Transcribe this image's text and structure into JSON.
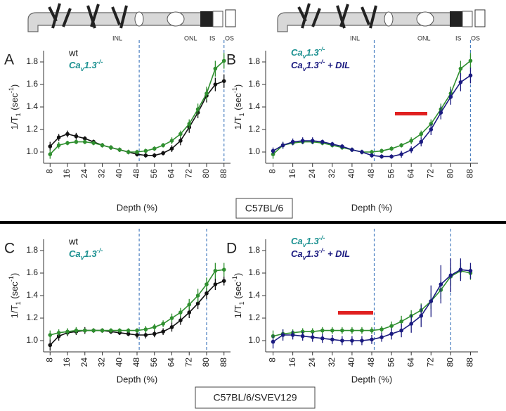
{
  "chart_data": [
    {
      "type": "line",
      "panel": "A",
      "xlabel": "Depth (%)",
      "ylabel": "1/T1 (sec-1)",
      "x": [
        8,
        12,
        16,
        20,
        24,
        28,
        32,
        36,
        40,
        44,
        48,
        52,
        56,
        60,
        64,
        68,
        72,
        76,
        80,
        84,
        88
      ],
      "xlim": [
        5,
        91
      ],
      "xticks": [
        8,
        16,
        24,
        32,
        40,
        48,
        56,
        64,
        72,
        80,
        88
      ],
      "ylim": [
        0.9,
        1.9
      ],
      "yticks": [
        {
          "value": 1,
          "label": "1.0"
        },
        1.2,
        1.4,
        1.6,
        1.8
      ],
      "dashed_lines": [
        49,
        88
      ],
      "series": [
        {
          "name": "wt",
          "color": "#111111",
          "label_color": "#111111",
          "values": [
            1.05,
            1.13,
            1.16,
            1.14,
            1.12,
            1.09,
            1.06,
            1.04,
            1.02,
            1.0,
            0.98,
            0.97,
            0.97,
            0.99,
            1.03,
            1.1,
            1.22,
            1.35,
            1.5,
            1.6,
            1.63
          ],
          "errors": [
            0.04,
            0.03,
            0.03,
            0.03,
            0.02,
            0.02,
            0.02,
            0.02,
            0.02,
            0.02,
            0.02,
            0.02,
            0.02,
            0.02,
            0.03,
            0.04,
            0.05,
            0.05,
            0.06,
            0.06,
            0.06
          ]
        },
        {
          "name": "Cav1.3-/-",
          "color": "#2f8f2f",
          "label_color": "#1a9090",
          "values": [
            0.98,
            1.06,
            1.08,
            1.09,
            1.09,
            1.08,
            1.06,
            1.04,
            1.02,
            1.0,
            1.0,
            1.01,
            1.03,
            1.06,
            1.1,
            1.16,
            1.25,
            1.38,
            1.52,
            1.74,
            1.81
          ],
          "errors": [
            0.04,
            0.03,
            0.02,
            0.02,
            0.02,
            0.02,
            0.02,
            0.02,
            0.02,
            0.02,
            0.02,
            0.02,
            0.02,
            0.02,
            0.03,
            0.03,
            0.04,
            0.05,
            0.06,
            0.07,
            0.07
          ]
        }
      ]
    },
    {
      "type": "line",
      "panel": "B",
      "xlabel": "Depth (%)",
      "ylabel": "1/T1 (sec-1)",
      "x": [
        8,
        12,
        16,
        20,
        24,
        28,
        32,
        36,
        40,
        44,
        48,
        52,
        56,
        60,
        64,
        68,
        72,
        76,
        80,
        84,
        88
      ],
      "xlim": [
        5,
        91
      ],
      "xticks": [
        8,
        16,
        24,
        32,
        40,
        48,
        56,
        64,
        72,
        80,
        88
      ],
      "ylim": [
        0.9,
        1.9
      ],
      "yticks": [
        {
          "value": 1,
          "label": "1.0"
        },
        1.2,
        1.4,
        1.6,
        1.8
      ],
      "dashed_lines": [
        49,
        88
      ],
      "series": [
        {
          "name": "Cav1.3-/-",
          "color": "#2f8f2f",
          "label_color": "#1a9090",
          "values": [
            0.98,
            1.06,
            1.08,
            1.09,
            1.09,
            1.08,
            1.06,
            1.04,
            1.02,
            1.0,
            1.0,
            1.01,
            1.03,
            1.06,
            1.1,
            1.16,
            1.25,
            1.38,
            1.52,
            1.74,
            1.81
          ],
          "errors": [
            0.04,
            0.03,
            0.02,
            0.02,
            0.02,
            0.02,
            0.02,
            0.02,
            0.02,
            0.02,
            0.02,
            0.02,
            0.02,
            0.02,
            0.03,
            0.03,
            0.04,
            0.05,
            0.06,
            0.07,
            0.07
          ]
        },
        {
          "name": "Cav1.3-/- + DIL",
          "color": "#1a1a80",
          "label_color": "#1a1a80",
          "values": [
            1.01,
            1.06,
            1.09,
            1.1,
            1.1,
            1.09,
            1.07,
            1.05,
            1.02,
            1.0,
            0.97,
            0.96,
            0.96,
            0.98,
            1.02,
            1.09,
            1.2,
            1.35,
            1.49,
            1.62,
            1.68
          ],
          "errors": [
            0.03,
            0.03,
            0.03,
            0.03,
            0.03,
            0.02,
            0.02,
            0.02,
            0.02,
            0.02,
            0.02,
            0.02,
            0.02,
            0.03,
            0.03,
            0.04,
            0.05,
            0.06,
            0.07,
            0.08,
            0.07
          ]
        }
      ]
    },
    {
      "type": "line",
      "panel": "C",
      "xlabel": "Depth (%)",
      "ylabel": "1/T1 (sec-1)",
      "x": [
        8,
        12,
        16,
        20,
        24,
        28,
        32,
        36,
        40,
        44,
        48,
        52,
        56,
        60,
        64,
        68,
        72,
        76,
        80,
        84,
        88
      ],
      "xlim": [
        5,
        91
      ],
      "xticks": [
        8,
        16,
        24,
        32,
        40,
        48,
        56,
        64,
        72,
        80,
        88
      ],
      "ylim": [
        0.9,
        1.9
      ],
      "yticks": [
        {
          "value": 1,
          "label": "1.0"
        },
        1.2,
        1.4,
        1.6,
        1.8
      ],
      "dashed_lines": [
        49,
        80
      ],
      "series": [
        {
          "name": "wt",
          "color": "#111111",
          "label_color": "#111111",
          "values": [
            0.96,
            1.04,
            1.07,
            1.08,
            1.09,
            1.09,
            1.09,
            1.08,
            1.07,
            1.06,
            1.05,
            1.05,
            1.06,
            1.08,
            1.12,
            1.18,
            1.25,
            1.33,
            1.42,
            1.5,
            1.53
          ],
          "errors": [
            0.05,
            0.04,
            0.03,
            0.03,
            0.03,
            0.02,
            0.02,
            0.02,
            0.02,
            0.02,
            0.03,
            0.03,
            0.03,
            0.03,
            0.04,
            0.04,
            0.05,
            0.05,
            0.05,
            0.05,
            0.04
          ]
        },
        {
          "name": "Cav1.3-/-",
          "color": "#2f8f2f",
          "label_color": "#1a9090",
          "values": [
            1.05,
            1.07,
            1.08,
            1.09,
            1.09,
            1.09,
            1.09,
            1.09,
            1.09,
            1.09,
            1.09,
            1.1,
            1.12,
            1.15,
            1.2,
            1.25,
            1.32,
            1.4,
            1.5,
            1.62,
            1.63
          ],
          "errors": [
            0.04,
            0.03,
            0.03,
            0.03,
            0.02,
            0.02,
            0.02,
            0.02,
            0.02,
            0.02,
            0.02,
            0.03,
            0.03,
            0.03,
            0.04,
            0.04,
            0.05,
            0.06,
            0.06,
            0.07,
            0.06
          ]
        }
      ]
    },
    {
      "type": "line",
      "panel": "D",
      "xlabel": "Depth (%)",
      "ylabel": "1/T1 (sec-1)",
      "x": [
        8,
        12,
        16,
        20,
        24,
        28,
        32,
        36,
        40,
        44,
        48,
        52,
        56,
        60,
        64,
        68,
        72,
        76,
        80,
        84,
        88
      ],
      "xlim": [
        5,
        91
      ],
      "xticks": [
        8,
        16,
        24,
        32,
        40,
        48,
        56,
        64,
        72,
        80,
        88
      ],
      "ylim": [
        0.9,
        1.9
      ],
      "yticks": [
        {
          "value": 1,
          "label": "1.0"
        },
        1.2,
        1.4,
        1.6,
        1.8
      ],
      "dashed_lines": [
        49,
        80
      ],
      "series": [
        {
          "name": "Cav1.3-/-",
          "color": "#2f8f2f",
          "label_color": "#1a9090",
          "values": [
            1.04,
            1.06,
            1.07,
            1.08,
            1.08,
            1.09,
            1.09,
            1.09,
            1.09,
            1.09,
            1.09,
            1.1,
            1.13,
            1.17,
            1.22,
            1.27,
            1.35,
            1.45,
            1.57,
            1.62,
            1.6
          ],
          "errors": [
            0.05,
            0.04,
            0.03,
            0.03,
            0.03,
            0.03,
            0.03,
            0.03,
            0.03,
            0.03,
            0.03,
            0.03,
            0.04,
            0.05,
            0.05,
            0.06,
            0.07,
            0.08,
            0.08,
            0.07,
            0.06
          ]
        },
        {
          "name": "Cav1.3-/- + DIL",
          "color": "#1a1a80",
          "label_color": "#1a1a80",
          "values": [
            0.99,
            1.05,
            1.05,
            1.04,
            1.03,
            1.02,
            1.01,
            1.0,
            1.0,
            1.0,
            1.01,
            1.03,
            1.06,
            1.09,
            1.15,
            1.22,
            1.35,
            1.5,
            1.58,
            1.63,
            1.62
          ],
          "errors": [
            0.06,
            0.05,
            0.04,
            0.04,
            0.04,
            0.04,
            0.04,
            0.04,
            0.04,
            0.04,
            0.04,
            0.04,
            0.05,
            0.06,
            0.08,
            0.1,
            0.14,
            0.17,
            0.15,
            0.1,
            0.07
          ]
        }
      ]
    }
  ],
  "strain_labels": [
    "C57BL/6",
    "C57BL/6/SVEV129"
  ],
  "diagram": {
    "labels": [
      "INL",
      "ONL",
      "IS",
      "OS"
    ]
  }
}
